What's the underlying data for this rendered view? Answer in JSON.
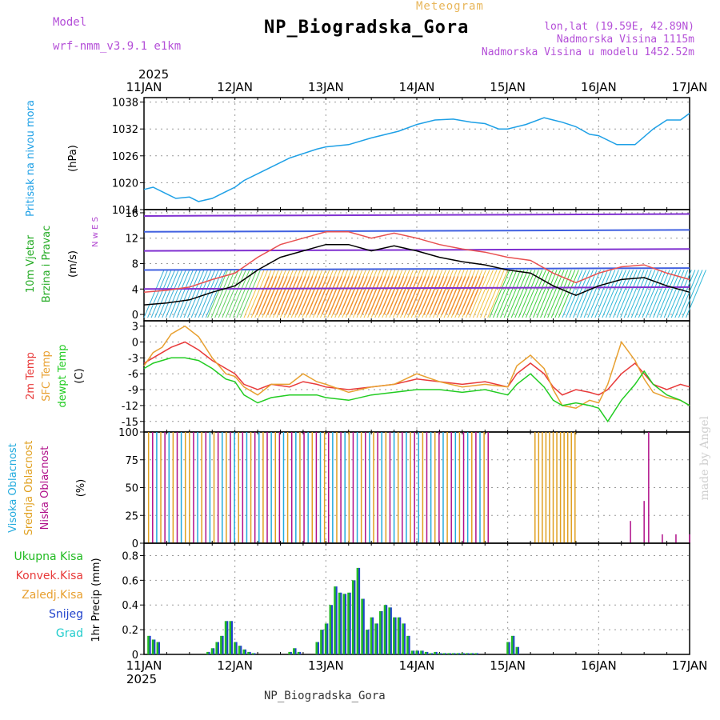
{
  "header": {
    "title": "NP_Biogradska_Gora",
    "subtitle": "Meteogram",
    "model_label": "Model",
    "model_name": "wrf-nmm_v3.9.1 e1km",
    "info_lines": [
      "lon,lat (19.59E, 42.89N)",
      "Nadmorska Visina 1115m",
      "Nadmorska Visina u modelu 1452.52m"
    ],
    "year": "2025",
    "footer": "NP_Biogradska_Gora",
    "credit": "made by Angel"
  },
  "colors": {
    "pressure": "#1ea0e6",
    "t2m": "#e83a3a",
    "sfc": "#e8a030",
    "dew": "#22cc22",
    "high": "#22aadd",
    "mid": "#e0a020",
    "low": "#b0108a",
    "total": "#22bb22",
    "snow": "#2244cc",
    "grad": "#22cccc"
  },
  "chart_data": [
    {
      "type": "line",
      "name": "pressure",
      "x_ticks": [
        "11JAN",
        "12JAN",
        "13JAN",
        "14JAN",
        "15JAN",
        "16JAN",
        "17JAN"
      ],
      "ylabel": [
        "Pritisak na nivou mora",
        "(hPa)"
      ],
      "ylim": [
        1014,
        1039
      ],
      "yticks": [
        1014,
        1020,
        1026,
        1032,
        1038
      ],
      "x": [
        0,
        0.1,
        0.25,
        0.35,
        0.5,
        0.6,
        0.75,
        0.9,
        1.0,
        1.1,
        1.25,
        1.4,
        1.6,
        1.75,
        1.9,
        2.0,
        2.25,
        2.5,
        2.6,
        2.8,
        3.0,
        3.2,
        3.4,
        3.6,
        3.75,
        3.9,
        4.0,
        4.2,
        4.4,
        4.5,
        4.6,
        4.75,
        4.9,
        5.0,
        5.2,
        5.4,
        5.6,
        5.75,
        5.9,
        6.0
      ],
      "y": [
        1018.5,
        1019,
        1017.5,
        1016.5,
        1016.8,
        1015.8,
        1016.5,
        1018,
        1019,
        1020.5,
        1022,
        1023.5,
        1025.5,
        1026.5,
        1027.5,
        1028,
        1028.5,
        1030,
        1030.5,
        1031.5,
        1033,
        1034,
        1034.2,
        1033.5,
        1033.2,
        1032,
        1032,
        1033,
        1034.5,
        1034,
        1033.5,
        1032.5,
        1030.8,
        1030.5,
        1028.5,
        1028.5,
        1032,
        1034,
        1034,
        1035.5
      ]
    },
    {
      "type": "line",
      "name": "wind",
      "ylabel": [
        "10m Vjetar",
        "Brzina i Pravac",
        "(m/s)"
      ],
      "ylim": [
        -1,
        16.5
      ],
      "yticks": [
        0,
        4,
        8,
        12,
        16
      ],
      "x": [
        0,
        0.25,
        0.5,
        0.75,
        1.0,
        1.25,
        1.5,
        1.75,
        2.0,
        2.25,
        2.5,
        2.75,
        3.0,
        3.25,
        3.5,
        3.75,
        4.0,
        4.25,
        4.5,
        4.75,
        5.0,
        5.25,
        5.5,
        5.75,
        6.0
      ],
      "y": [
        1.5,
        1.8,
        2.3,
        3.5,
        4.5,
        7.0,
        9.0,
        10.0,
        11.0,
        11.0,
        10.0,
        10.8,
        10.0,
        9.0,
        8.3,
        7.8,
        7.0,
        6.5,
        4.5,
        3.0,
        4.5,
        5.5,
        5.8,
        4.5,
        3.5
      ],
      "compass": [
        "N",
        "w",
        "E",
        "S"
      ]
    },
    {
      "type": "line",
      "name": "temperature",
      "ylabel": [
        "2m Temp",
        "SFC Temp",
        "dewpt Temp",
        "(C)"
      ],
      "ylim": [
        -17,
        4
      ],
      "yticks": [
        3,
        0,
        -3,
        -6,
        -9,
        -12,
        -15
      ],
      "x": [
        0,
        0.1,
        0.2,
        0.3,
        0.45,
        0.6,
        0.75,
        0.9,
        1.0,
        1.1,
        1.25,
        1.4,
        1.6,
        1.75,
        1.9,
        2.0,
        2.25,
        2.5,
        2.75,
        3.0,
        3.25,
        3.5,
        3.75,
        4.0,
        4.1,
        4.25,
        4.4,
        4.5,
        4.6,
        4.75,
        4.9,
        5.0,
        5.1,
        5.25,
        5.4,
        5.5,
        5.6,
        5.75,
        5.9,
        6.0
      ],
      "series": [
        {
          "key": "t2m",
          "values": [
            -4,
            -3,
            -2,
            -1,
            0,
            -1.5,
            -3.5,
            -5,
            -6,
            -8,
            -9,
            -8,
            -8.5,
            -7.5,
            -8,
            -8.5,
            -9,
            -8.5,
            -8,
            -7,
            -7.5,
            -8,
            -7.5,
            -8.5,
            -6,
            -4,
            -6,
            -8.5,
            -10,
            -9,
            -9.5,
            -10,
            -9,
            -6,
            -4,
            -6,
            -8,
            -9,
            -8,
            -8.5
          ]
        },
        {
          "key": "sfc",
          "values": [
            -4.5,
            -2,
            -1,
            1.5,
            3,
            1,
            -3,
            -6,
            -6.5,
            -8.5,
            -10,
            -8,
            -8,
            -6,
            -7.5,
            -8,
            -9.5,
            -8.5,
            -8,
            -6,
            -7.5,
            -8.5,
            -8,
            -8.5,
            -4.5,
            -2.5,
            -5,
            -9,
            -12,
            -12.5,
            -11,
            -11.5,
            -8,
            0,
            -3.5,
            -7,
            -9.5,
            -10.5,
            -11,
            -12
          ]
        },
        {
          "key": "dew",
          "values": [
            -5,
            -4,
            -3.5,
            -3,
            -3,
            -3.5,
            -5,
            -7,
            -7.5,
            -10,
            -11.5,
            -10.5,
            -10,
            -10,
            -10,
            -10.5,
            -11,
            -10,
            -9.5,
            -9,
            -9,
            -9.5,
            -9,
            -10,
            -8,
            -6,
            -8.5,
            -11,
            -12,
            -11.5,
            -12,
            -12.5,
            -15,
            -11,
            -8,
            -5.5,
            -8,
            -10,
            -11,
            -12
          ]
        }
      ]
    },
    {
      "type": "bar",
      "name": "clouds",
      "ylabel": [
        "Visoka Oblacnost",
        "Srednja Oblacnost",
        "Niska Oblacnost",
        "(%)"
      ],
      "ylim": [
        0,
        100
      ],
      "yticks": [
        0,
        25,
        50,
        75,
        100
      ]
    },
    {
      "type": "bar",
      "name": "precip",
      "legend": [
        "Ukupna Kisa",
        "Konvek.Kisa",
        "Zaledj.Kisa",
        "Snijeg",
        "Grad"
      ],
      "ylabel": "1hr Precip (mm)",
      "ylim": [
        0,
        0.9
      ],
      "yticks": [
        0,
        0.2,
        0.4,
        0.6,
        0.8
      ],
      "x": [
        0.05,
        0.1,
        0.15,
        0.7,
        0.75,
        0.8,
        0.85,
        0.9,
        0.95,
        1.0,
        1.05,
        1.1,
        1.15,
        1.2,
        1.6,
        1.65,
        1.7,
        1.9,
        1.95,
        2.0,
        2.05,
        2.1,
        2.15,
        2.2,
        2.25,
        2.3,
        2.35,
        2.4,
        2.45,
        2.5,
        2.55,
        2.6,
        2.65,
        2.7,
        2.75,
        2.8,
        2.85,
        2.9,
        2.95,
        3.0,
        3.05,
        3.1,
        3.15,
        3.2,
        3.25,
        3.3,
        3.35,
        3.4,
        3.45,
        3.5,
        3.55,
        3.6,
        3.65,
        4.0,
        4.05,
        4.1
      ],
      "values": [
        0.15,
        0.12,
        0.1,
        0.02,
        0.05,
        0.1,
        0.15,
        0.27,
        0.27,
        0.1,
        0.07,
        0.04,
        0.02,
        0.01,
        0.02,
        0.05,
        0.02,
        0.1,
        0.2,
        0.25,
        0.4,
        0.55,
        0.5,
        0.49,
        0.5,
        0.6,
        0.7,
        0.45,
        0.2,
        0.3,
        0.25,
        0.35,
        0.4,
        0.38,
        0.3,
        0.3,
        0.25,
        0.15,
        0.03,
        0.03,
        0.03,
        0.02,
        0.01,
        0.02,
        0.01,
        0.01,
        0.01,
        0.01,
        0.01,
        0.01,
        0.01,
        0.01,
        0.01,
        0.1,
        0.15,
        0.06
      ]
    }
  ]
}
